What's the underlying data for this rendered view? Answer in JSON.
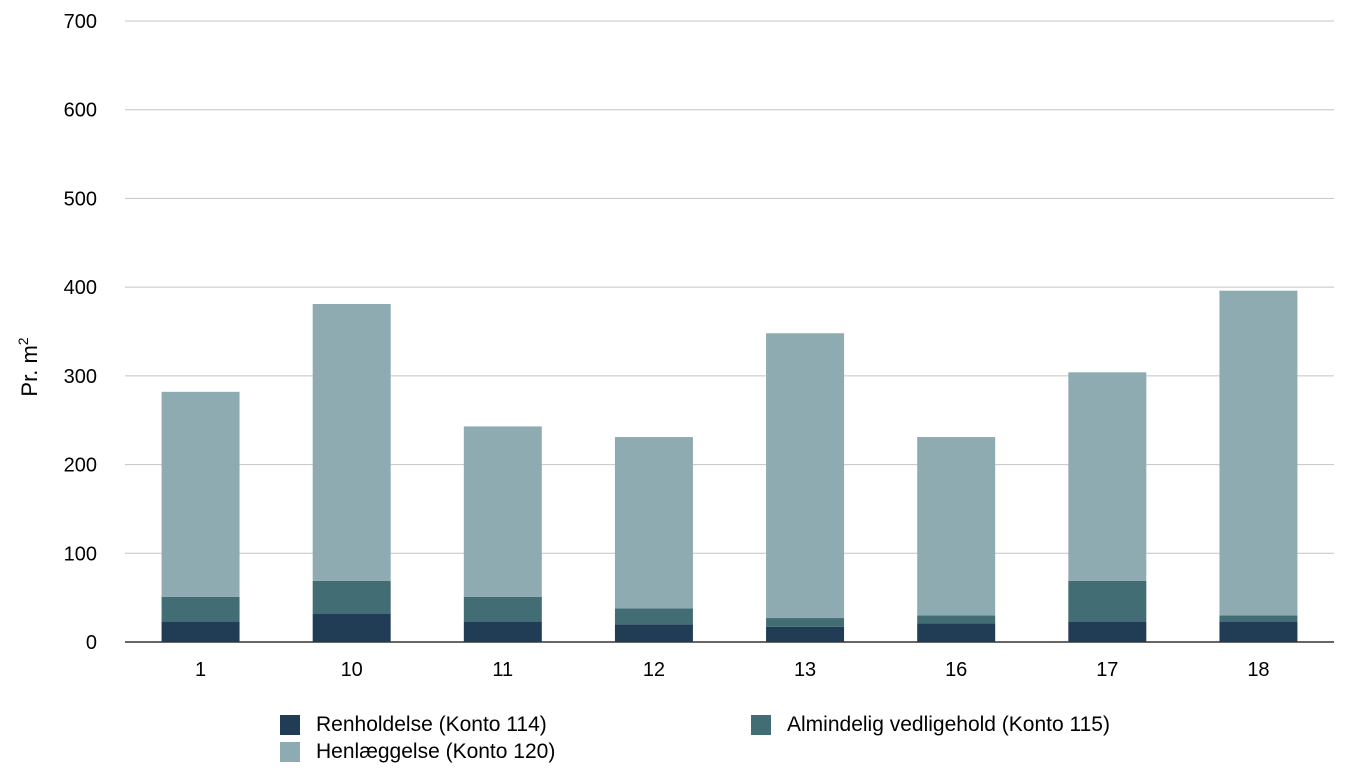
{
  "chart_data": {
    "type": "bar",
    "stacked": true,
    "categories": [
      "1",
      "10",
      "11",
      "12",
      "13",
      "16",
      "17",
      "18"
    ],
    "series": [
      {
        "name": "Renholdelse (Konto 114)",
        "color": "#213d55",
        "values": [
          23,
          32,
          23,
          20,
          17,
          21,
          23,
          23
        ]
      },
      {
        "name": "Almindelig vedligehold (Konto 115)",
        "color": "#436d74",
        "values": [
          28,
          37,
          28,
          18,
          10,
          9,
          46,
          7
        ]
      },
      {
        "name": "Henlæggelse (Konto 120)",
        "color": "#8eabb2",
        "values": [
          231,
          312,
          192,
          193,
          321,
          201,
          235,
          366
        ]
      }
    ],
    "ylabel": "Pr. m",
    "ylabel_sup": "2",
    "ylim": [
      0,
      700
    ],
    "yticks": [
      "0",
      "100",
      "200",
      "300",
      "400",
      "500",
      "600",
      "700"
    ],
    "grid": true,
    "legend_position": "bottom"
  }
}
